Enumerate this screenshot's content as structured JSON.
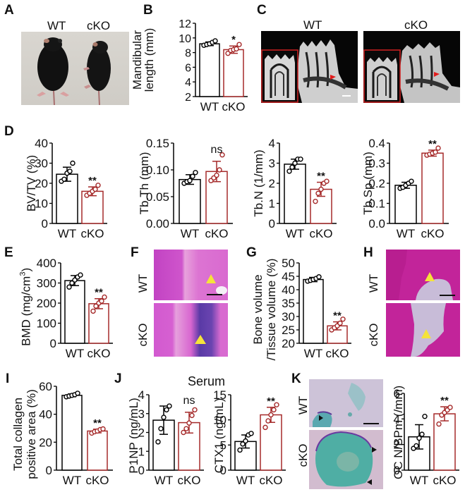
{
  "colors": {
    "wt": "#000000",
    "cko": "#a52a2a",
    "ct_inset_border": "#d02020",
    "he_pink": "#d64fc9",
    "he_purple": "#6a3aa8",
    "arrow_yellow": "#f5e33a",
    "trap_bg": "#cbbfd6",
    "trap_green": "#4fb8a6"
  },
  "panels": {
    "A": {
      "letter": "A",
      "labels": [
        "WT",
        "cKO"
      ],
      "type": "photo",
      "description": "mice-photo"
    },
    "B": {
      "letter": "B"
    },
    "C": {
      "letter": "C",
      "labels": [
        "WT",
        "cKO"
      ],
      "type": "microCT"
    },
    "D": {
      "letter": "D"
    },
    "E": {
      "letter": "E"
    },
    "F": {
      "letter": "F",
      "labels": [
        "WT",
        "cKO"
      ],
      "type": "HE-stain"
    },
    "G": {
      "letter": "G"
    },
    "H": {
      "letter": "H",
      "labels": [
        "WT",
        "cKO"
      ],
      "type": "HE-stain"
    },
    "I": {
      "letter": "I"
    },
    "J": {
      "letter": "J",
      "title": "Serum"
    },
    "K": {
      "letter": "K",
      "labels": [
        "WT",
        "cKO"
      ],
      "type": "TRAP-stain"
    }
  },
  "chart_data": [
    {
      "panel": "B",
      "type": "bar",
      "categories": [
        "WT",
        "cKO"
      ],
      "ylabel": "Mandibular length (mm)",
      "ylabel_lines": [
        "Mandibular",
        "length (mm)"
      ],
      "ylim": [
        2,
        12
      ],
      "yticks": [
        2,
        4,
        6,
        8,
        10,
        12
      ],
      "means": [
        9.2,
        8.4
      ],
      "sd": [
        0.25,
        0.5
      ],
      "points": [
        [
          9.0,
          9.1,
          9.2,
          9.4,
          9.6
        ],
        [
          7.9,
          8.3,
          8.4,
          8.5,
          9.1
        ]
      ],
      "significance": "*"
    },
    {
      "panel": "D1",
      "type": "bar",
      "categories": [
        "WT",
        "cKO"
      ],
      "ylabel": "BV/TV (%)",
      "ylim": [
        0,
        40
      ],
      "yticks": [
        0,
        10,
        20,
        30,
        40
      ],
      "means": [
        24.5,
        16
      ],
      "sd": [
        3.5,
        2.2
      ],
      "points": [
        [
          21,
          22,
          25,
          26,
          30
        ],
        [
          14,
          15,
          16,
          17,
          19
        ]
      ],
      "significance": "**"
    },
    {
      "panel": "D2",
      "type": "bar",
      "categories": [
        "WT",
        "cKO"
      ],
      "ylabel": "Tb.Th (mm)",
      "ylim": [
        0,
        0.15
      ],
      "yticks": [
        "0.00",
        "0.05",
        "0.10",
        "0.15"
      ],
      "means": [
        0.082,
        0.097
      ],
      "sd": [
        0.009,
        0.019
      ],
      "points": [
        [
          0.075,
          0.078,
          0.08,
          0.088,
          0.095
        ],
        [
          0.08,
          0.085,
          0.09,
          0.1,
          0.128
        ]
      ],
      "significance": "ns"
    },
    {
      "panel": "D3",
      "type": "bar",
      "categories": [
        "WT",
        "cKO"
      ],
      "ylabel": "Tb.N (1/mm)",
      "ylim": [
        0,
        4
      ],
      "yticks": [
        0,
        1,
        2,
        3,
        4
      ],
      "means": [
        2.95,
        1.7
      ],
      "sd": [
        0.25,
        0.35
      ],
      "points": [
        [
          2.6,
          2.8,
          3.0,
          3.2,
          3.2
        ],
        [
          1.1,
          1.5,
          1.7,
          2.0,
          2.1
        ]
      ],
      "significance": "**"
    },
    {
      "panel": "D4",
      "type": "bar",
      "categories": [
        "WT",
        "cKO"
      ],
      "ylabel": "Tb.Sp (mm)",
      "ylim": [
        0,
        0.4
      ],
      "yticks": [
        "0.0",
        "0.1",
        "0.2",
        "0.3",
        "0.4"
      ],
      "means": [
        0.19,
        0.35
      ],
      "sd": [
        0.015,
        0.015
      ],
      "points": [
        [
          0.175,
          0.18,
          0.19,
          0.2,
          0.21
        ],
        [
          0.34,
          0.345,
          0.35,
          0.355,
          0.375
        ]
      ],
      "significance": "**"
    },
    {
      "panel": "E",
      "type": "bar",
      "categories": [
        "WT",
        "cKO"
      ],
      "ylabel": "BMD (mg/cm³)",
      "ylim": [
        0,
        400
      ],
      "yticks": [
        0,
        100,
        200,
        300,
        400
      ],
      "means": [
        312,
        197
      ],
      "sd": [
        25,
        25
      ],
      "points": [
        [
          280,
          300,
          315,
          330,
          340
        ],
        [
          160,
          185,
          200,
          210,
          230
        ]
      ],
      "significance": "**"
    },
    {
      "panel": "G",
      "type": "bar",
      "categories": [
        "WT",
        "cKO"
      ],
      "ylabel": "Bone volume /Tissue volume (%)",
      "ylabel_lines": [
        "Bone volume",
        "/Tissue volume  (%)"
      ],
      "ylim": [
        20,
        50
      ],
      "yticks": [
        20,
        25,
        30,
        35,
        40,
        45,
        50
      ],
      "means": [
        43.8,
        26.5
      ],
      "sd": [
        0.8,
        1.5
      ],
      "points": [
        [
          43.2,
          43.5,
          43.8,
          44.2,
          44.8
        ],
        [
          25,
          25.8,
          26.5,
          27.5,
          29
        ]
      ],
      "significance": "**"
    },
    {
      "panel": "I",
      "type": "bar",
      "categories": [
        "WT",
        "cKO"
      ],
      "ylabel": "Total collagen positive area (%)",
      "ylabel_lines": [
        "Total collagen",
        "positive area (%)"
      ],
      "ylim": [
        0,
        60
      ],
      "yticks": [
        0,
        20,
        40,
        60
      ],
      "means": [
        53.5,
        28
      ],
      "sd": [
        1.0,
        1.3
      ],
      "points": [
        [
          52.5,
          53,
          53.5,
          54,
          55
        ],
        [
          26.5,
          27.5,
          28,
          29,
          29.5
        ]
      ],
      "significance": "**"
    },
    {
      "panel": "J1",
      "type": "bar",
      "categories": [
        "WT",
        "cKO"
      ],
      "ylabel": "P1NP (ng/mL)",
      "ylim": [
        0,
        4
      ],
      "yticks": [
        0,
        1,
        2,
        3,
        4
      ],
      "means": [
        2.65,
        2.52
      ],
      "sd": [
        0.75,
        0.55
      ],
      "points": [
        [
          1.5,
          2.2,
          2.8,
          3.2,
          3.4
        ],
        [
          2.0,
          2.2,
          2.5,
          2.9,
          3.2
        ]
      ],
      "significance": "ns"
    },
    {
      "panel": "J2",
      "type": "bar",
      "categories": [
        "WT",
        "cKO"
      ],
      "ylabel": "CTX1 (ng/mL)",
      "ylim": [
        0,
        15
      ],
      "yticks": [
        0,
        5,
        10,
        15
      ],
      "means": [
        5.7,
        11.0
      ],
      "sd": [
        1.3,
        1.5
      ],
      "points": [
        [
          4.0,
          5.2,
          5.8,
          7.0,
          7.3
        ],
        [
          8.5,
          9.8,
          11.0,
          12.0,
          13.0
        ]
      ],
      "significance": "**"
    },
    {
      "panel": "K",
      "type": "bar",
      "categories": [
        "WT",
        "cKO"
      ],
      "ylabel": "OC N/BPm (/mm)",
      "ylim": [
        0,
        6
      ],
      "yticks": [
        0,
        2,
        4,
        6
      ],
      "means": [
        2.6,
        4.4
      ],
      "sd": [
        0.95,
        0.55
      ],
      "points": [
        [
          1.7,
          1.9,
          2.5,
          2.8,
          4.2
        ],
        [
          3.6,
          4.3,
          4.5,
          4.7,
          4.9
        ]
      ],
      "significance": "**"
    }
  ]
}
